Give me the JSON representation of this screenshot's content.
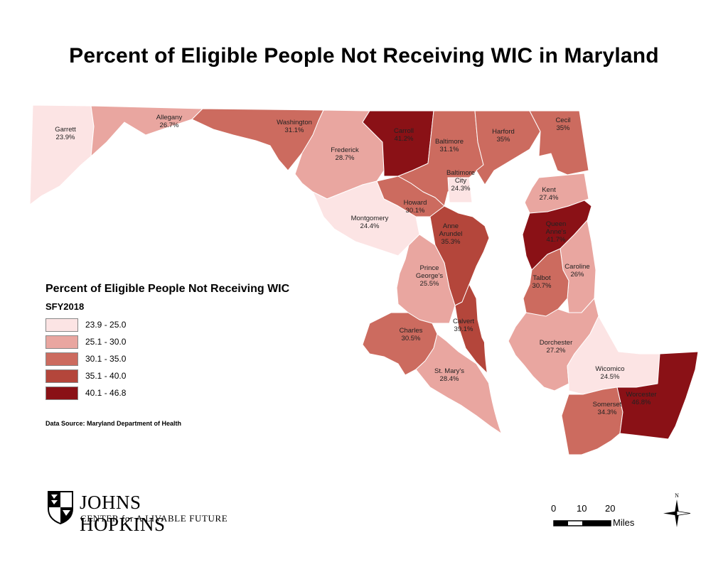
{
  "title": "Percent of Eligible People Not Receiving WIC in Maryland",
  "legend": {
    "title": "Percent of Eligible People Not Receiving WIC",
    "subtitle": "SFY2018",
    "classes": [
      {
        "range": "23.9 - 25.0",
        "color": "#fce4e4"
      },
      {
        "range": "25.1 - 30.0",
        "color": "#e9a6a0"
      },
      {
        "range": "30.1 - 35.0",
        "color": "#cc6b5f"
      },
      {
        "range": "35.1 - 40.0",
        "color": "#b4463b"
      },
      {
        "range": "40.1 - 46.8",
        "color": "#8a1116"
      }
    ]
  },
  "source": "Data Source: Maryland Department of Health",
  "counties": [
    {
      "name": "Garrett",
      "value": "23.9%",
      "class": 0
    },
    {
      "name": "Allegany",
      "value": "26.7%",
      "class": 1
    },
    {
      "name": "Washington",
      "value": "31.1%",
      "class": 2
    },
    {
      "name": "Frederick",
      "value": "28.7%",
      "class": 1
    },
    {
      "name": "Carroll",
      "value": "41.2%",
      "class": 4
    },
    {
      "name": "Baltimore",
      "value": "31.1%",
      "class": 2
    },
    {
      "name": "Harford",
      "value": "35%",
      "class": 2
    },
    {
      "name": "Cecil",
      "value": "35%",
      "class": 2
    },
    {
      "name": "Baltimore City",
      "value": "24.3%",
      "class": 0
    },
    {
      "name": "Kent",
      "value": "27.4%",
      "class": 1
    },
    {
      "name": "Howard",
      "value": "30.1%",
      "class": 2
    },
    {
      "name": "Montgomery",
      "value": "24.4%",
      "class": 0
    },
    {
      "name": "Anne Arundel",
      "value": "35.3%",
      "class": 3
    },
    {
      "name": "Queen Anne's",
      "value": "41.7%",
      "class": 4
    },
    {
      "name": "Caroline",
      "value": "26%",
      "class": 1
    },
    {
      "name": "Prince George's",
      "value": "25.5%",
      "class": 1
    },
    {
      "name": "Talbot",
      "value": "30.7%",
      "class": 2
    },
    {
      "name": "Calvert",
      "value": "39.1%",
      "class": 3
    },
    {
      "name": "Charles",
      "value": "30.5%",
      "class": 2
    },
    {
      "name": "Dorchester",
      "value": "27.2%",
      "class": 1
    },
    {
      "name": "St. Mary's",
      "value": "28.4%",
      "class": 1
    },
    {
      "name": "Wicomico",
      "value": "24.5%",
      "class": 0
    },
    {
      "name": "Somerset",
      "value": "34.3%",
      "class": 2
    },
    {
      "name": "Worcester",
      "value": "46.8%",
      "class": 4
    }
  ],
  "logo": {
    "name": "JOHNS HOPKINS",
    "sub": "CENTER for A LIVABLE FUTURE"
  },
  "scale": {
    "ticks": [
      "0",
      "10",
      "20"
    ],
    "unit": "Miles"
  },
  "compass": {
    "north": "N"
  }
}
